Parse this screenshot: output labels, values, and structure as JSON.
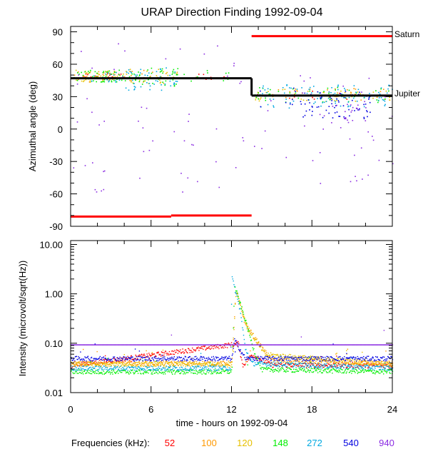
{
  "chart_data": {
    "type": "scatter",
    "title": "URAP Direction Finding  1992-09-04",
    "xlabel": "time - hours on 1992-09-04",
    "x_ticks": [
      0,
      6,
      12,
      18,
      24
    ],
    "xlim": [
      0,
      24
    ],
    "panels": [
      {
        "id": "azimuth",
        "ylabel": "Azimuthal angle (deg)",
        "ylim": [
          -90,
          95
        ],
        "y_ticks": [
          90,
          60,
          30,
          0,
          -30,
          -60,
          -90
        ],
        "reference_lines": [
          {
            "name": "Saturn",
            "color": "#ff0000",
            "segments": [
              {
                "x": [
                  0.0,
                  7.5
                ],
                "y": [
                  -81,
                  -81
                ]
              },
              {
                "x": [
                  7.5,
                  13.5
                ],
                "y": [
                  -80,
                  -80
                ]
              },
              {
                "x": [
                  13.5,
                  24.0
                ],
                "y": [
                  86,
                  86
                ]
              }
            ]
          },
          {
            "name": "Jupiter",
            "color": "#000000",
            "segments": [
              {
                "x": [
                  0.0,
                  13.5
                ],
                "y": [
                  47,
                  47
                ]
              },
              {
                "x": [
                  13.5,
                  13.5
                ],
                "y": [
                  47,
                  31
                ]
              },
              {
                "x": [
                  13.5,
                  24.0
                ],
                "y": [
                  31,
                  31
                ]
              }
            ]
          }
        ],
        "series": [
          {
            "name": "52",
            "clusters": [
              {
                "x": [
                  0.5,
                  4.0
                ],
                "y": [
                  47,
                  52
                ],
                "n": 18
              },
              {
                "x": [
                  8.0,
                  11.5
                ],
                "y": [
                  46,
                  52
                ],
                "n": 10
              },
              {
                "x": [
                  13.7,
                  24.0
                ],
                "y": [
                  28,
                  36
                ],
                "n": 10
              }
            ]
          },
          {
            "name": "100",
            "clusters": [
              {
                "x": [
                  0.2,
                  4.0
                ],
                "y": [
                  44,
                  54
                ],
                "n": 30
              },
              {
                "x": [
                  4.0,
                  8.0
                ],
                "y": [
                  44,
                  55
                ],
                "n": 20
              },
              {
                "x": [
                  13.7,
                  24.0
                ],
                "y": [
                  27,
                  38
                ],
                "n": 35
              }
            ]
          },
          {
            "name": "120",
            "clusters": [
              {
                "x": [
                  0.2,
                  4.0
                ],
                "y": [
                  44,
                  55
                ],
                "n": 35
              },
              {
                "x": [
                  4.0,
                  8.0
                ],
                "y": [
                  42,
                  56
                ],
                "n": 25
              },
              {
                "x": [
                  13.7,
                  18.0
                ],
                "y": [
                  26,
                  38
                ],
                "n": 20
              },
              {
                "x": [
                  18.0,
                  24.0
                ],
                "y": [
                  26,
                  36
                ],
                "n": 30
              }
            ]
          },
          {
            "name": "148",
            "clusters": [
              {
                "x": [
                  0.2,
                  4.0
                ],
                "y": [
                  44,
                  55
                ],
                "n": 45
              },
              {
                "x": [
                  4.0,
                  8.0
                ],
                "y": [
                  40,
                  57
                ],
                "n": 45
              },
              {
                "x": [
                  8.0,
                  12.0
                ],
                "y": [
                  44,
                  55
                ],
                "n": 12
              },
              {
                "x": [
                  13.7,
                  24.0
                ],
                "y": [
                  25,
                  40
                ],
                "n": 45
              }
            ]
          },
          {
            "name": "272",
            "clusters": [
              {
                "x": [
                  1.5,
                  4.0
                ],
                "y": [
                  44,
                  54
                ],
                "n": 15
              },
              {
                "x": [
                  4.0,
                  8.0
                ],
                "y": [
                  36,
                  58
                ],
                "n": 50
              },
              {
                "x": [
                  14.0,
                  24.0
                ],
                "y": [
                  20,
                  42
                ],
                "n": 95
              }
            ]
          },
          {
            "name": "540",
            "clusters": [
              {
                "x": [
                  17.0,
                  22.5
                ],
                "y": [
                  10,
                  36
                ],
                "n": 70
              },
              {
                "x": [
                  14.0,
                  17.0
                ],
                "y": [
                  20,
                  40
                ],
                "n": 10
              }
            ]
          },
          {
            "name": "940",
            "clusters": [
              {
                "x": [
                  0.0,
                  13.0
                ],
                "y": [
                  -60,
                  80
                ],
                "n": 55
              },
              {
                "x": [
                  13.5,
                  24.0
                ],
                "y": [
                  -50,
                  60
                ],
                "n": 40
              },
              {
                "x": [
                  18.5,
                  22.0
                ],
                "y": [
                  0,
                  25
                ],
                "n": 20
              }
            ]
          }
        ]
      },
      {
        "id": "intensity",
        "ylabel": "Intensity (microvolt/sqrt(Hz))",
        "yscale": "log",
        "ylim": [
          0.01,
          12
        ],
        "y_ticks": [
          10.0,
          1.0,
          0.1,
          0.01
        ],
        "y_tick_labels": [
          "10.00",
          "1.00",
          "0.10",
          "0.01"
        ],
        "series": [
          {
            "name": "52",
            "baseline": 0.036,
            "points": [
              [
                0,
                0.036
              ],
              [
                12.8,
                0.036
              ],
              [
                12.5,
                0.1
              ],
              [
                13.5,
                0.06
              ],
              [
                15.0,
                0.037
              ],
              [
                24,
                0.036
              ]
            ]
          },
          {
            "name": "100",
            "baseline": 0.04,
            "points": [
              [
                0,
                0.04
              ],
              [
                12.0,
                0.04
              ],
              [
                12.3,
                1.2
              ],
              [
                13.0,
                0.25
              ],
              [
                14.0,
                0.1
              ],
              [
                15.0,
                0.045
              ],
              [
                24,
                0.04
              ]
            ]
          },
          {
            "name": "120",
            "baseline": 0.038,
            "points": [
              [
                0,
                0.038
              ],
              [
                12.0,
                0.038
              ],
              [
                12.3,
                1.2
              ],
              [
                13.2,
                0.2
              ],
              [
                14.5,
                0.06
              ],
              [
                24,
                0.038
              ]
            ]
          },
          {
            "name": "148",
            "baseline": 0.027,
            "points": [
              [
                0,
                0.027
              ],
              [
                12.0,
                0.027
              ],
              [
                12.2,
                1.5
              ],
              [
                13.0,
                0.3
              ],
              [
                13.6,
                0.08
              ],
              [
                14.2,
                0.03
              ],
              [
                24,
                0.027
              ]
            ]
          },
          {
            "name": "272",
            "baseline": 0.032,
            "points": [
              [
                0,
                0.032
              ],
              [
                11.9,
                0.032
              ],
              [
                12.0,
                2.2
              ],
              [
                12.6,
                0.5
              ],
              [
                13.0,
                0.08
              ],
              [
                13.5,
                0.04
              ],
              [
                24,
                0.032
              ]
            ]
          },
          {
            "name": "540",
            "baseline": 0.05,
            "points": [
              [
                0,
                0.05
              ],
              [
                12.0,
                0.05
              ],
              [
                12.2,
                0.12
              ],
              [
                13.0,
                0.05
              ],
              [
                24,
                0.05
              ]
            ]
          },
          {
            "name": "940",
            "baseline": 0.095,
            "points": [
              [
                0,
                0.095
              ],
              [
                24,
                0.095
              ]
            ]
          }
        ]
      }
    ],
    "legend": {
      "title": "Frequencies (kHz):",
      "position": "bottom",
      "entries": [
        {
          "label": "52",
          "color": "#ff0000"
        },
        {
          "label": "100",
          "color": "#ff9900"
        },
        {
          "label": "120",
          "color": "#e6c000"
        },
        {
          "label": "148",
          "color": "#00ee00"
        },
        {
          "label": "272",
          "color": "#00a8e0"
        },
        {
          "label": "540",
          "color": "#0000e0"
        },
        {
          "label": "940",
          "color": "#8a2be2"
        }
      ]
    }
  }
}
